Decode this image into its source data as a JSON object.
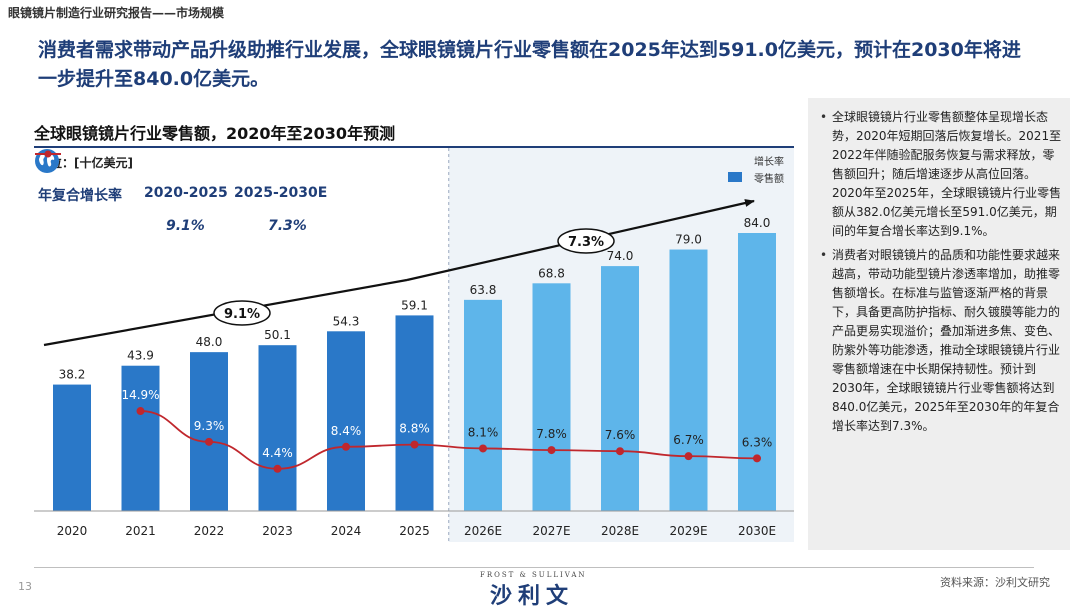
{
  "header": {
    "title": "眼镜镜片制造行业研究报告——市场规模"
  },
  "headline": "消费者需求带动产品升级助推行业发展，全球眼镜镜片行业零售额在2025年达到591.0亿美元，预计在2030年将进一步提升至840.0亿美元。",
  "colors": {
    "bar_actual": "#2a78c8",
    "bar_forecast": "#5eb5ea",
    "growth_line": "#c0272d",
    "forecast_bg": "#eef3f8",
    "navy": "#1f3e78"
  },
  "chart_data": {
    "type": "bar",
    "title": "全球眼镜镜片行业零售额，2020年至2030年预测",
    "unit": "单位：[十亿美元]",
    "categories": [
      "2020",
      "2021",
      "2022",
      "2023",
      "2024",
      "2025",
      "2026E",
      "2027E",
      "2028E",
      "2029E",
      "2030E"
    ],
    "values": [
      38.2,
      43.9,
      48.0,
      50.1,
      54.3,
      59.1,
      63.8,
      68.8,
      74.0,
      79.0,
      84.0
    ],
    "value_labels": [
      "38.2",
      "43.9",
      "48.0",
      "50.1",
      "54.3",
      "59.1",
      "63.8",
      "68.8",
      "74.0",
      "79.0",
      "84.0"
    ],
    "forecast_start_index": 6,
    "growth": {
      "name": "增长率",
      "x": [
        "2021",
        "2022",
        "2023",
        "2024",
        "2025",
        "2026E",
        "2027E",
        "2028E",
        "2029E",
        "2030E"
      ],
      "values": [
        14.9,
        9.3,
        4.4,
        8.4,
        8.8,
        8.1,
        7.8,
        7.6,
        6.7,
        6.3
      ],
      "labels": [
        "14.9%",
        "9.3%",
        "4.4%",
        "8.4%",
        "8.8%",
        "8.1%",
        "7.8%",
        "7.6%",
        "6.7%",
        "6.3%"
      ]
    },
    "legend": {
      "line": "增长率",
      "bar": "零售额"
    },
    "cagr": {
      "label": "年复合增长率",
      "periods": [
        "2020-2025",
        "2025-2030E"
      ],
      "values": [
        "9.1%",
        "7.3%"
      ]
    },
    "ylim": [
      0,
      100
    ]
  },
  "side_panel": {
    "bullets": [
      "全球眼镜镜片行业零售额整体呈现增长态势，2020年短期回落后恢复增长。2021至2022年伴随验配服务恢复与需求释放，零售额回升；随后增速逐步从高位回落。2020年至2025年，全球眼镜镜片行业零售额从382.0亿美元增长至591.0亿美元，期间的年复合增长率达到9.1%。",
      "消费者对眼镜镜片的品质和功能性要求越来越高，带动功能型镜片渗透率增加，助推零售额增长。在标准与监管逐渐严格的背景下，具备更高防护指标、耐久镀膜等能力的产品更易实现溢价；叠加渐进多焦、变色、防紫外等功能渗透，推动全球眼镜镜片行业零售额增速在中长期保持韧性。预计到2030年，全球眼镜镜片行业零售额将达到840.0亿美元，2025年至2030年的年复合增长率达到7.3%。"
    ]
  },
  "footer": {
    "page_number": "13",
    "logo_small": "FROST & SULLIVAN",
    "logo_main": "沙利文",
    "source": "资料来源：沙利文研究"
  }
}
